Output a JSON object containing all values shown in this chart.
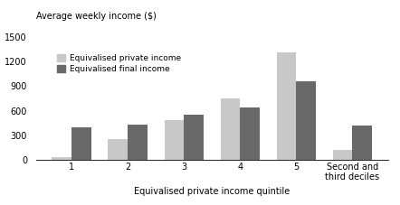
{
  "categories": [
    "1",
    "2",
    "3",
    "4",
    "5",
    "Second and\nthird deciles"
  ],
  "private_income": [
    30,
    250,
    490,
    750,
    1310,
    120
  ],
  "final_income": [
    400,
    430,
    550,
    640,
    960,
    420
  ],
  "color_private": "#c8c8c8",
  "color_final": "#696969",
  "ylabel": "Average weekly income ($)",
  "xlabel": "Equivalised private income quintile",
  "legend_private": "Equivalised private income",
  "legend_final": "Equivalised final income",
  "ylim": [
    0,
    1500
  ],
  "yticks": [
    0,
    300,
    600,
    900,
    1200,
    1500
  ],
  "bar_width": 0.35,
  "figsize": [
    4.42,
    2.27
  ],
  "dpi": 100
}
